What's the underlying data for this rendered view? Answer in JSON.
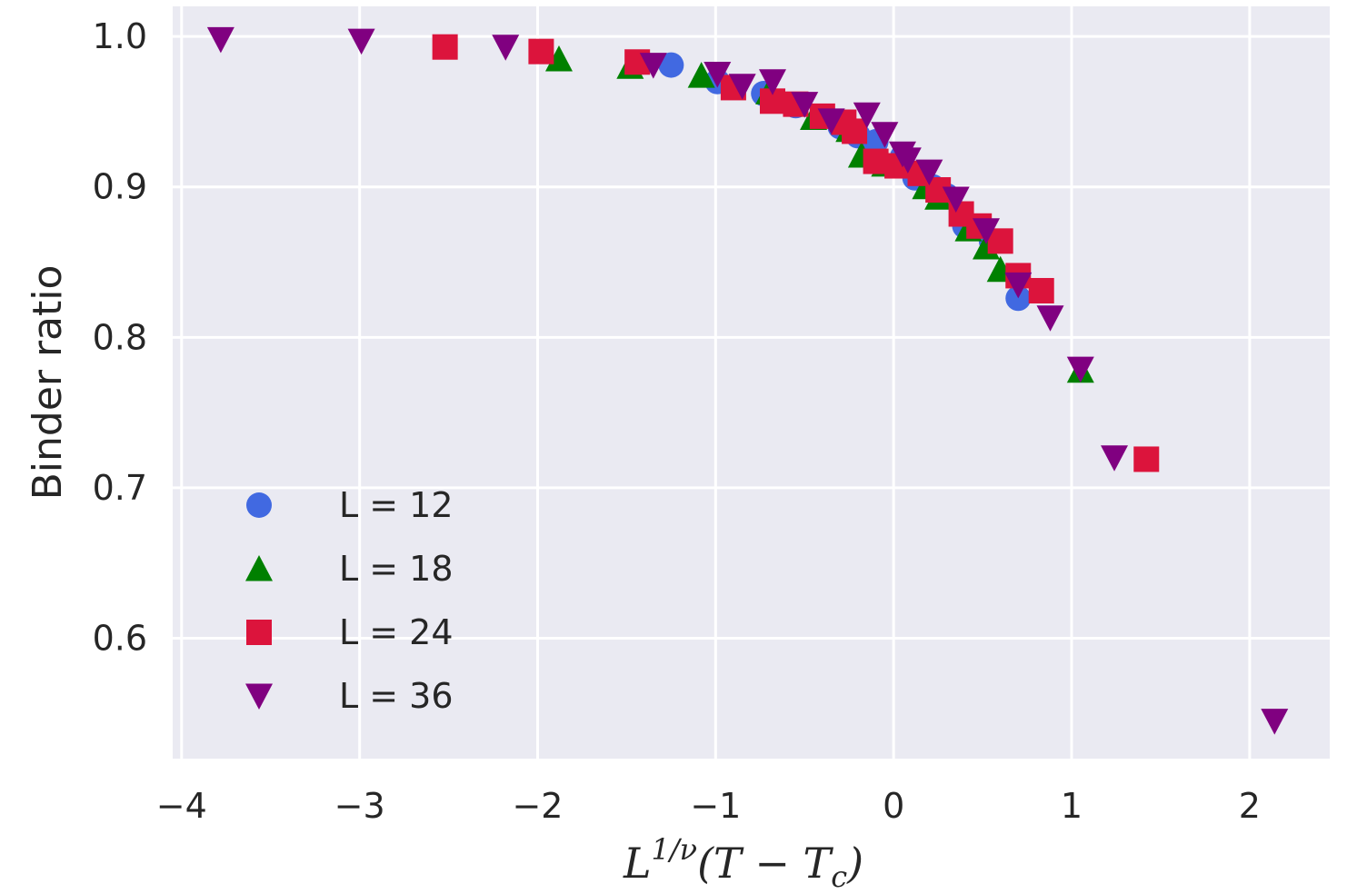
{
  "chart_data": {
    "type": "scatter",
    "title": "",
    "xlabel": {
      "base": "L",
      "superscript": "1/ν",
      "rest_open": "(T − T",
      "subscript": "c",
      "rest_close": ")"
    },
    "ylabel": "Binder ratio",
    "xlim": [
      -4.05,
      2.45
    ],
    "ylim": [
      0.52,
      1.02
    ],
    "xticks": [
      -4,
      -3,
      -2,
      -1,
      0,
      1,
      2
    ],
    "xtick_labels": [
      "−4",
      "−3",
      "−2",
      "−1",
      "0",
      "1",
      "2"
    ],
    "yticks": [
      0.6,
      0.7,
      0.8,
      0.9,
      1.0
    ],
    "ytick_labels": [
      "0.6",
      "0.7",
      "0.8",
      "0.9",
      "1.0"
    ],
    "grid": true,
    "legend_position": "lower-left",
    "series": [
      {
        "name": "L = 12",
        "marker": "circle",
        "color": "#4169e1",
        "points": [
          [
            -1.25,
            0.981
          ],
          [
            -0.99,
            0.97
          ],
          [
            -0.73,
            0.962
          ],
          [
            -0.55,
            0.954
          ],
          [
            -0.3,
            0.94
          ],
          [
            -0.2,
            0.934
          ],
          [
            -0.1,
            0.93
          ],
          [
            0.05,
            0.92
          ],
          [
            0.12,
            0.906
          ],
          [
            0.22,
            0.9
          ],
          [
            0.3,
            0.894
          ],
          [
            0.4,
            0.874
          ],
          [
            0.55,
            0.864
          ],
          [
            0.7,
            0.826
          ]
        ]
      },
      {
        "name": "L = 18",
        "marker": "triangle-up",
        "color": "#008000",
        "points": [
          [
            -1.88,
            0.985
          ],
          [
            -1.48,
            0.98
          ],
          [
            -1.08,
            0.974
          ],
          [
            -0.7,
            0.963
          ],
          [
            -0.45,
            0.946
          ],
          [
            -0.25,
            0.938
          ],
          [
            -0.18,
            0.921
          ],
          [
            -0.05,
            0.915
          ],
          [
            0.18,
            0.9
          ],
          [
            0.25,
            0.893
          ],
          [
            0.42,
            0.872
          ],
          [
            0.52,
            0.86
          ],
          [
            0.6,
            0.845
          ],
          [
            1.05,
            0.778
          ]
        ]
      },
      {
        "name": "L = 24",
        "marker": "square",
        "color": "#dc143c",
        "points": [
          [
            -2.52,
            0.993
          ],
          [
            -1.98,
            0.99
          ],
          [
            -1.44,
            0.983
          ],
          [
            -0.9,
            0.966
          ],
          [
            -0.68,
            0.957
          ],
          [
            -0.55,
            0.955
          ],
          [
            -0.4,
            0.947
          ],
          [
            -0.28,
            0.943
          ],
          [
            -0.22,
            0.937
          ],
          [
            -0.1,
            0.917
          ],
          [
            0.02,
            0.914
          ],
          [
            0.15,
            0.909
          ],
          [
            0.25,
            0.898
          ],
          [
            0.38,
            0.882
          ],
          [
            0.48,
            0.874
          ],
          [
            0.6,
            0.864
          ],
          [
            0.7,
            0.841
          ],
          [
            0.83,
            0.831
          ],
          [
            1.42,
            0.719
          ]
        ]
      },
      {
        "name": "L = 36",
        "marker": "triangle-down",
        "color": "#800080",
        "points": [
          [
            -3.78,
            0.998
          ],
          [
            -2.99,
            0.997
          ],
          [
            -2.18,
            0.993
          ],
          [
            -1.35,
            0.981
          ],
          [
            -0.99,
            0.975
          ],
          [
            -0.85,
            0.967
          ],
          [
            -0.68,
            0.97
          ],
          [
            -0.5,
            0.955
          ],
          [
            -0.35,
            0.944
          ],
          [
            -0.15,
            0.948
          ],
          [
            -0.05,
            0.935
          ],
          [
            0.05,
            0.922
          ],
          [
            0.08,
            0.918
          ],
          [
            0.2,
            0.91
          ],
          [
            0.35,
            0.892
          ],
          [
            0.52,
            0.871
          ],
          [
            0.7,
            0.835
          ],
          [
            0.88,
            0.813
          ],
          [
            1.05,
            0.779
          ],
          [
            1.24,
            0.72
          ],
          [
            2.14,
            0.545
          ]
        ]
      }
    ]
  }
}
